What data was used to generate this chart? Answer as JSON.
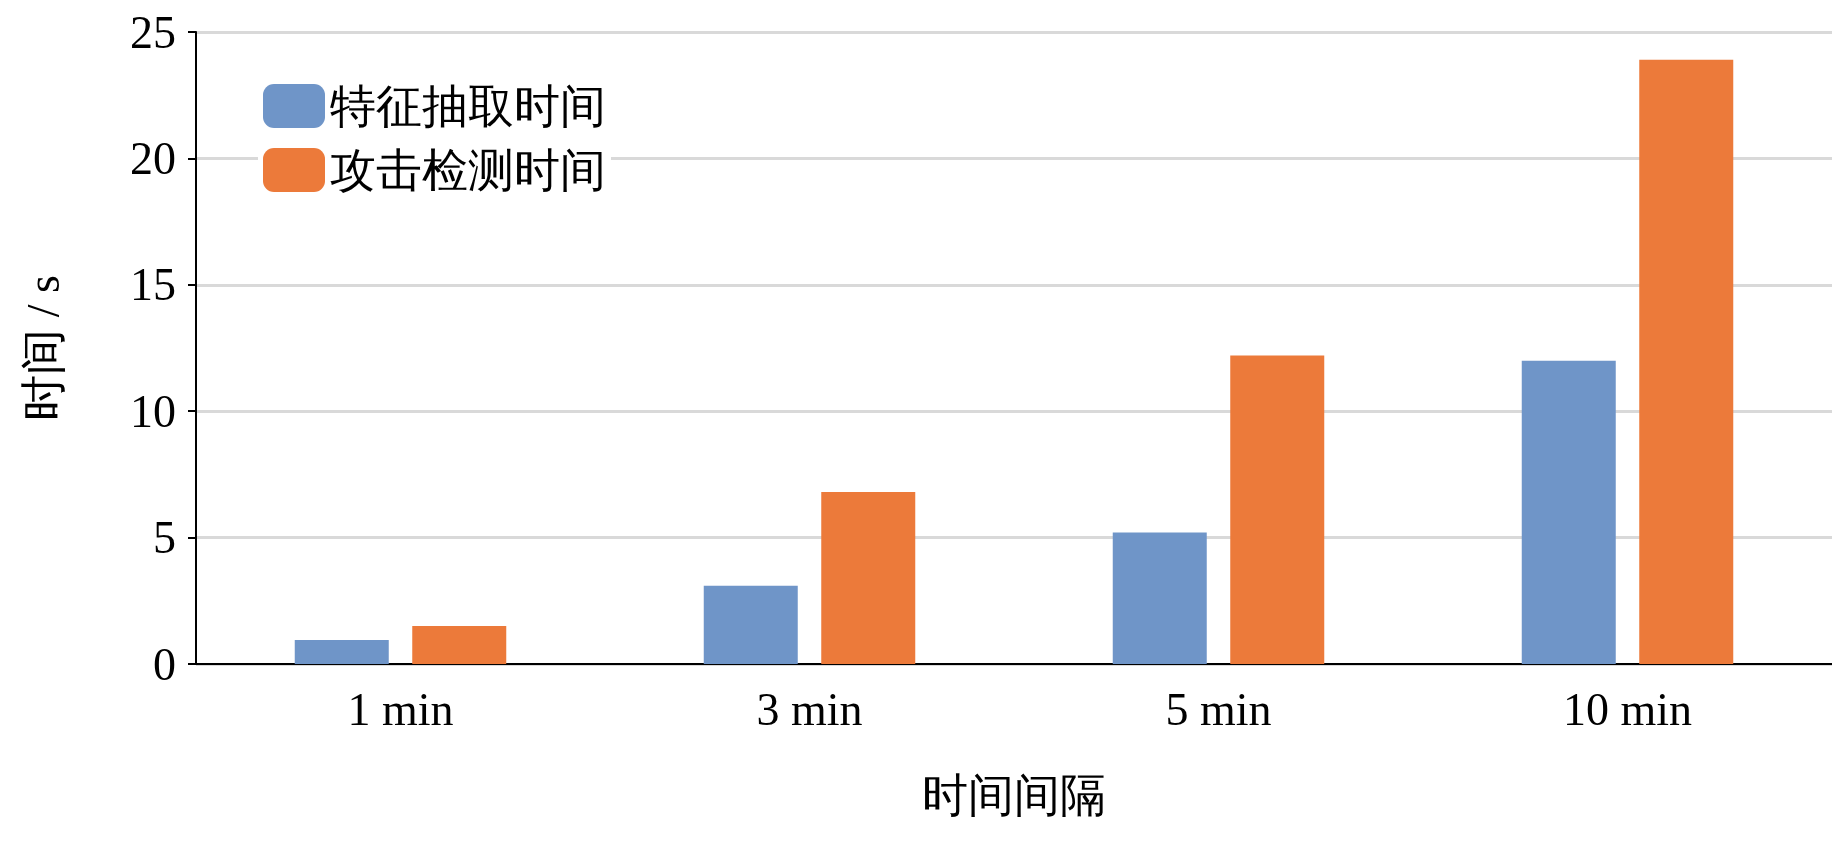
{
  "chart_data": {
    "type": "bar",
    "xlabel": "时间间隔",
    "ylabel": "时间 / s",
    "categories": [
      "1 min",
      "3 min",
      "5 min",
      "10 min"
    ],
    "series": [
      {
        "name": "特征抽取时间",
        "color": "#6f95c8",
        "values": [
          0.95,
          3.1,
          5.2,
          12.0
        ]
      },
      {
        "name": "攻击检测时间",
        "color": "#ec7a3a",
        "values": [
          1.5,
          6.8,
          12.2,
          23.9
        ]
      }
    ],
    "ylim": [
      0,
      25
    ],
    "yticks": [
      0,
      5,
      10,
      15,
      20,
      25
    ],
    "grid": "y",
    "legend": "top left"
  }
}
